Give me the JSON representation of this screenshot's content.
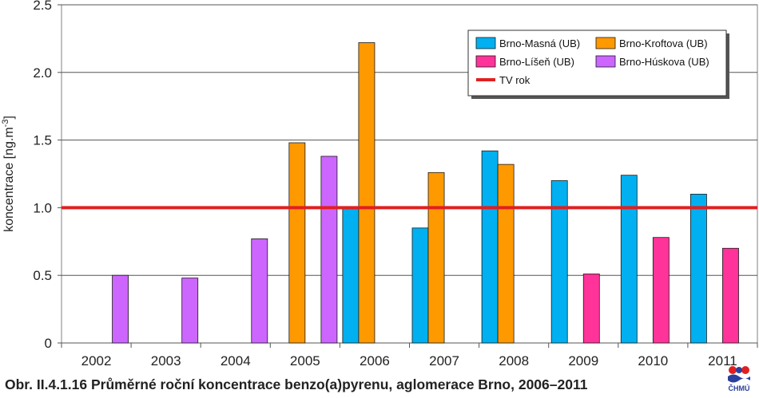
{
  "chart_data": {
    "type": "bar",
    "categories": [
      "2002",
      "2003",
      "2004",
      "2005",
      "2006",
      "2007",
      "2008",
      "2009",
      "2010",
      "2011"
    ],
    "ylabel": "koncentrace [ng.m-3]",
    "ylabel_main": "koncentrace [ng.m",
    "ylabel_sup": "-3",
    "ylabel_close": "]",
    "ylim": [
      0,
      2.5
    ],
    "yticks": [
      0,
      0.5,
      1.0,
      1.5,
      2.0,
      2.5
    ],
    "ytick_labels": [
      "0",
      "0.5",
      "1.0",
      "1.5",
      "2.0",
      "2.5"
    ],
    "grid": true,
    "legend_position": "top-right",
    "series": [
      {
        "name": "Brno-Masná (UB)",
        "color": "#00b0f0",
        "values": [
          null,
          null,
          null,
          null,
          1.0,
          0.85,
          1.42,
          1.2,
          1.24,
          1.1
        ]
      },
      {
        "name": "Brno-Kroftova (UB)",
        "color": "#ff9900",
        "values": [
          null,
          null,
          null,
          1.48,
          2.22,
          1.26,
          1.32,
          null,
          null,
          null
        ]
      },
      {
        "name": "Brno-Líšeň (UB)",
        "color": "#ff3399",
        "values": [
          null,
          null,
          null,
          null,
          null,
          null,
          null,
          0.51,
          0.78,
          0.7
        ]
      },
      {
        "name": "Brno-Húskova (UB)",
        "color": "#cc66ff",
        "values": [
          0.5,
          0.48,
          0.77,
          1.38,
          null,
          null,
          null,
          null,
          null,
          null
        ]
      }
    ],
    "reference_line": {
      "name": "TV rok",
      "value": 1.0,
      "color": "#e02020"
    }
  },
  "caption": "Obr. II.4.1.16  Průměrné roční koncentrace benzo(a)pyrenu, aglomerace Brno, 2006–2011",
  "logo": {
    "text": "ČHMÚ"
  }
}
